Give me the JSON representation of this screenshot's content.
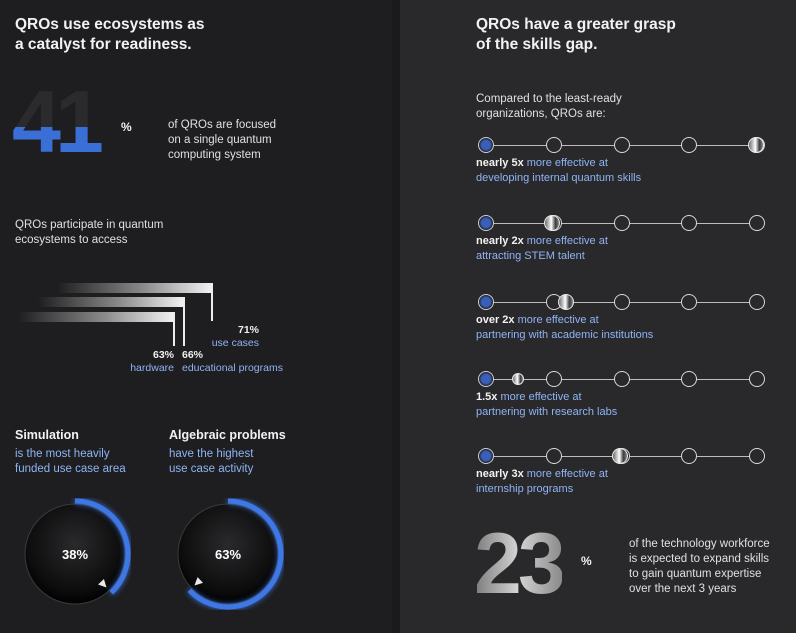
{
  "left": {
    "title": "QROs use ecosystems as\na catalyst for readiness.",
    "stat41": {
      "number": "41",
      "unit": "%",
      "text": "of QROs are focused\non a single quantum\ncomputing system"
    },
    "ecosystems": {
      "intro": "QROs participate in quantum\necosystems to access",
      "bars": [
        {
          "pct": "71%",
          "label": "use cases",
          "value": 71
        },
        {
          "pct": "66%",
          "label": "educational programs",
          "value": 66
        },
        {
          "pct": "63%",
          "label": "hardware",
          "value": 63
        }
      ]
    },
    "simulation": {
      "title": "Simulation",
      "text": "is the most heavily\nfunded use case area",
      "value": "38%",
      "fraction": 0.38
    },
    "algebraic": {
      "title": "Algebraic problems",
      "text": "have the highest\nuse case activity",
      "value": "63%",
      "fraction": 0.63
    },
    "colors": {
      "accent_blue": "#3b6fd8",
      "text_blue": "#8fb4f5"
    }
  },
  "right": {
    "title": "QROs have a greater grasp\nof the skills gap.",
    "intro": "Compared to the least-ready\norganizations, QROs are:",
    "items": [
      {
        "lead": "nearly 5x",
        "rest": "more effective at",
        "line2": "developing internal quantum skills",
        "position": 4
      },
      {
        "lead": "nearly 2x",
        "rest": "more effective at",
        "line2": "attracting STEM talent",
        "position": 1
      },
      {
        "lead": "over 2x",
        "rest": "more effective at",
        "line2": "partnering with academic institutions",
        "position": 1.2
      },
      {
        "lead": "1.5x",
        "rest": "more effective at",
        "line2": "partnering with research labs",
        "position": 0.5
      },
      {
        "lead": "nearly 3x",
        "rest": "more effective at",
        "line2": "internship programs",
        "position": 2
      }
    ],
    "stat23": {
      "number": "23",
      "unit": "%",
      "text": "of the technology workforce\nis expected to expand skills\nto gain quantum expertise\nover the next 3 years"
    }
  }
}
